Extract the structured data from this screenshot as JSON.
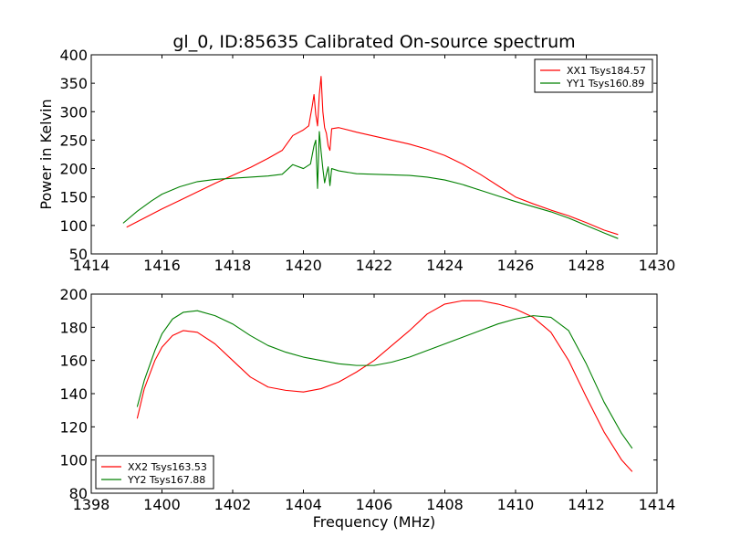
{
  "chart_data": [
    {
      "type": "line",
      "title": "gl_0, ID:85635 Calibrated On-source spectrum",
      "xlabel": "",
      "ylabel": "Power in Kelvin",
      "xlim": [
        1414,
        1430
      ],
      "ylim": [
        50,
        400
      ],
      "xticks": [
        1414,
        1416,
        1418,
        1420,
        1422,
        1424,
        1426,
        1428,
        1430
      ],
      "yticks": [
        50,
        100,
        150,
        200,
        250,
        300,
        350,
        400
      ],
      "grid": false,
      "legend_position": "top-right",
      "series": [
        {
          "name": "XX1 Tsys184.57",
          "color": "#ff0000",
          "x": [
            1415.0,
            1415.5,
            1416.0,
            1416.5,
            1417.0,
            1417.5,
            1418.0,
            1418.5,
            1419.0,
            1419.4,
            1419.7,
            1420.0,
            1420.15,
            1420.25,
            1420.3,
            1420.35,
            1420.4,
            1420.45,
            1420.5,
            1420.55,
            1420.6,
            1420.65,
            1420.7,
            1420.75,
            1420.8,
            1421.0,
            1421.5,
            1422.0,
            1422.5,
            1423.0,
            1423.5,
            1424.0,
            1424.5,
            1425.0,
            1425.5,
            1426.0,
            1426.5,
            1427.0,
            1427.5,
            1428.0,
            1428.5,
            1428.9
          ],
          "y": [
            97,
            113,
            129,
            144,
            159,
            174,
            188,
            202,
            218,
            232,
            258,
            268,
            275,
            310,
            330,
            295,
            275,
            330,
            362,
            300,
            272,
            262,
            240,
            232,
            270,
            272,
            264,
            257,
            250,
            243,
            234,
            223,
            208,
            190,
            170,
            150,
            138,
            127,
            117,
            105,
            92,
            84
          ]
        },
        {
          "name": "YY1 Tsys160.89",
          "color": "#008000",
          "x": [
            1414.9,
            1415.3,
            1415.7,
            1416.0,
            1416.5,
            1417.0,
            1417.5,
            1418.0,
            1418.5,
            1419.0,
            1419.4,
            1419.7,
            1420.0,
            1420.2,
            1420.3,
            1420.35,
            1420.4,
            1420.45,
            1420.5,
            1420.55,
            1420.6,
            1420.65,
            1420.7,
            1420.75,
            1420.8,
            1421.0,
            1421.5,
            1422.0,
            1422.5,
            1423.0,
            1423.5,
            1424.0,
            1424.5,
            1425.0,
            1425.5,
            1426.0,
            1426.5,
            1427.0,
            1427.5,
            1428.0,
            1428.5,
            1428.9
          ],
          "y": [
            104,
            125,
            143,
            155,
            168,
            177,
            181,
            183,
            185,
            187,
            190,
            207,
            200,
            208,
            240,
            250,
            165,
            265,
            230,
            200,
            175,
            190,
            203,
            170,
            200,
            196,
            191,
            190,
            189,
            188,
            185,
            180,
            172,
            162,
            152,
            142,
            133,
            124,
            113,
            100,
            87,
            77
          ]
        }
      ]
    },
    {
      "type": "line",
      "title": "",
      "xlabel": "Frequency (MHz)",
      "ylabel": "",
      "xlim": [
        1398,
        1414
      ],
      "ylim": [
        80,
        200
      ],
      "xticks": [
        1398,
        1400,
        1402,
        1404,
        1406,
        1408,
        1410,
        1412,
        1414
      ],
      "yticks": [
        80,
        100,
        120,
        140,
        160,
        180,
        200
      ],
      "grid": false,
      "legend_position": "bottom-left",
      "series": [
        {
          "name": "XX2 Tsys163.53",
          "color": "#ff0000",
          "x": [
            1399.3,
            1399.5,
            1399.8,
            1400.0,
            1400.3,
            1400.6,
            1401.0,
            1401.5,
            1402.0,
            1402.5,
            1403.0,
            1403.5,
            1404.0,
            1404.5,
            1405.0,
            1405.5,
            1406.0,
            1406.5,
            1407.0,
            1407.5,
            1408.0,
            1408.5,
            1409.0,
            1409.5,
            1410.0,
            1410.5,
            1411.0,
            1411.5,
            1412.0,
            1412.5,
            1413.0,
            1413.3
          ],
          "y": [
            125,
            143,
            160,
            168,
            175,
            178,
            177,
            170,
            160,
            150,
            144,
            142,
            141,
            143,
            147,
            153,
            160,
            169,
            178,
            188,
            194,
            196,
            196,
            194,
            191,
            186,
            177,
            160,
            138,
            117,
            100,
            93
          ]
        },
        {
          "name": "YY2 Tsys167.88",
          "color": "#008000",
          "x": [
            1399.3,
            1399.5,
            1399.8,
            1400.0,
            1400.3,
            1400.6,
            1401.0,
            1401.5,
            1402.0,
            1402.5,
            1403.0,
            1403.5,
            1404.0,
            1404.5,
            1405.0,
            1405.5,
            1406.0,
            1406.5,
            1407.0,
            1407.5,
            1408.0,
            1408.5,
            1409.0,
            1409.5,
            1410.0,
            1410.5,
            1411.0,
            1411.5,
            1412.0,
            1412.5,
            1413.0,
            1413.3
          ],
          "y": [
            132,
            148,
            166,
            176,
            185,
            189,
            190,
            187,
            182,
            175,
            169,
            165,
            162,
            160,
            158,
            157,
            157,
            159,
            162,
            166,
            170,
            174,
            178,
            182,
            185,
            187,
            186,
            178,
            158,
            135,
            116,
            107
          ]
        }
      ]
    }
  ]
}
